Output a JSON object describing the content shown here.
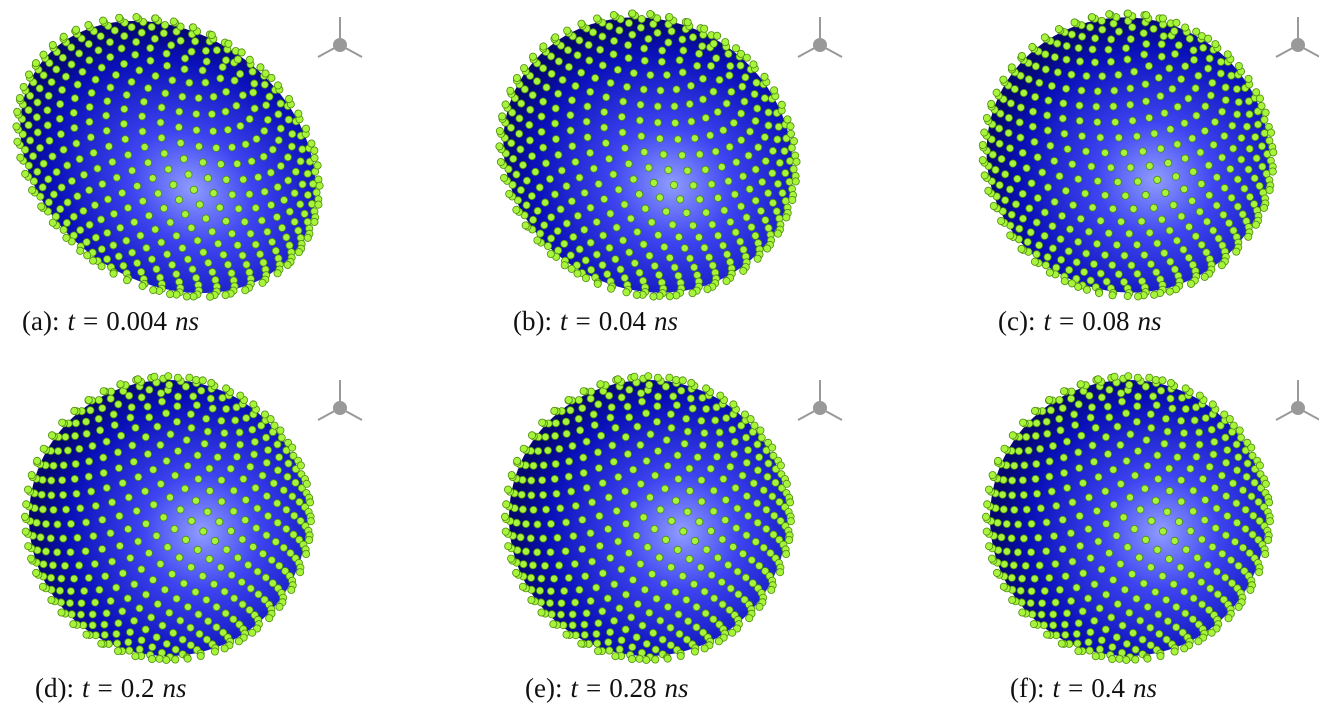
{
  "panels": [
    {
      "label": "(a):",
      "variable": "t",
      "equals": "=",
      "value": "0.004",
      "unit": "ns"
    },
    {
      "label": "(b):",
      "variable": "t",
      "equals": "=",
      "value": "0.04",
      "unit": "ns"
    },
    {
      "label": "(c):",
      "variable": "t",
      "equals": "=",
      "value": "0.08",
      "unit": "ns"
    },
    {
      "label": "(d):",
      "variable": "t",
      "equals": "=",
      "value": "0.2",
      "unit": "ns"
    },
    {
      "label": "(e):",
      "variable": "t",
      "equals": "=",
      "value": "0.28",
      "unit": "ns"
    },
    {
      "label": "(f):",
      "variable": "t",
      "equals": "=",
      "value": "0.4",
      "unit": "ns"
    }
  ]
}
